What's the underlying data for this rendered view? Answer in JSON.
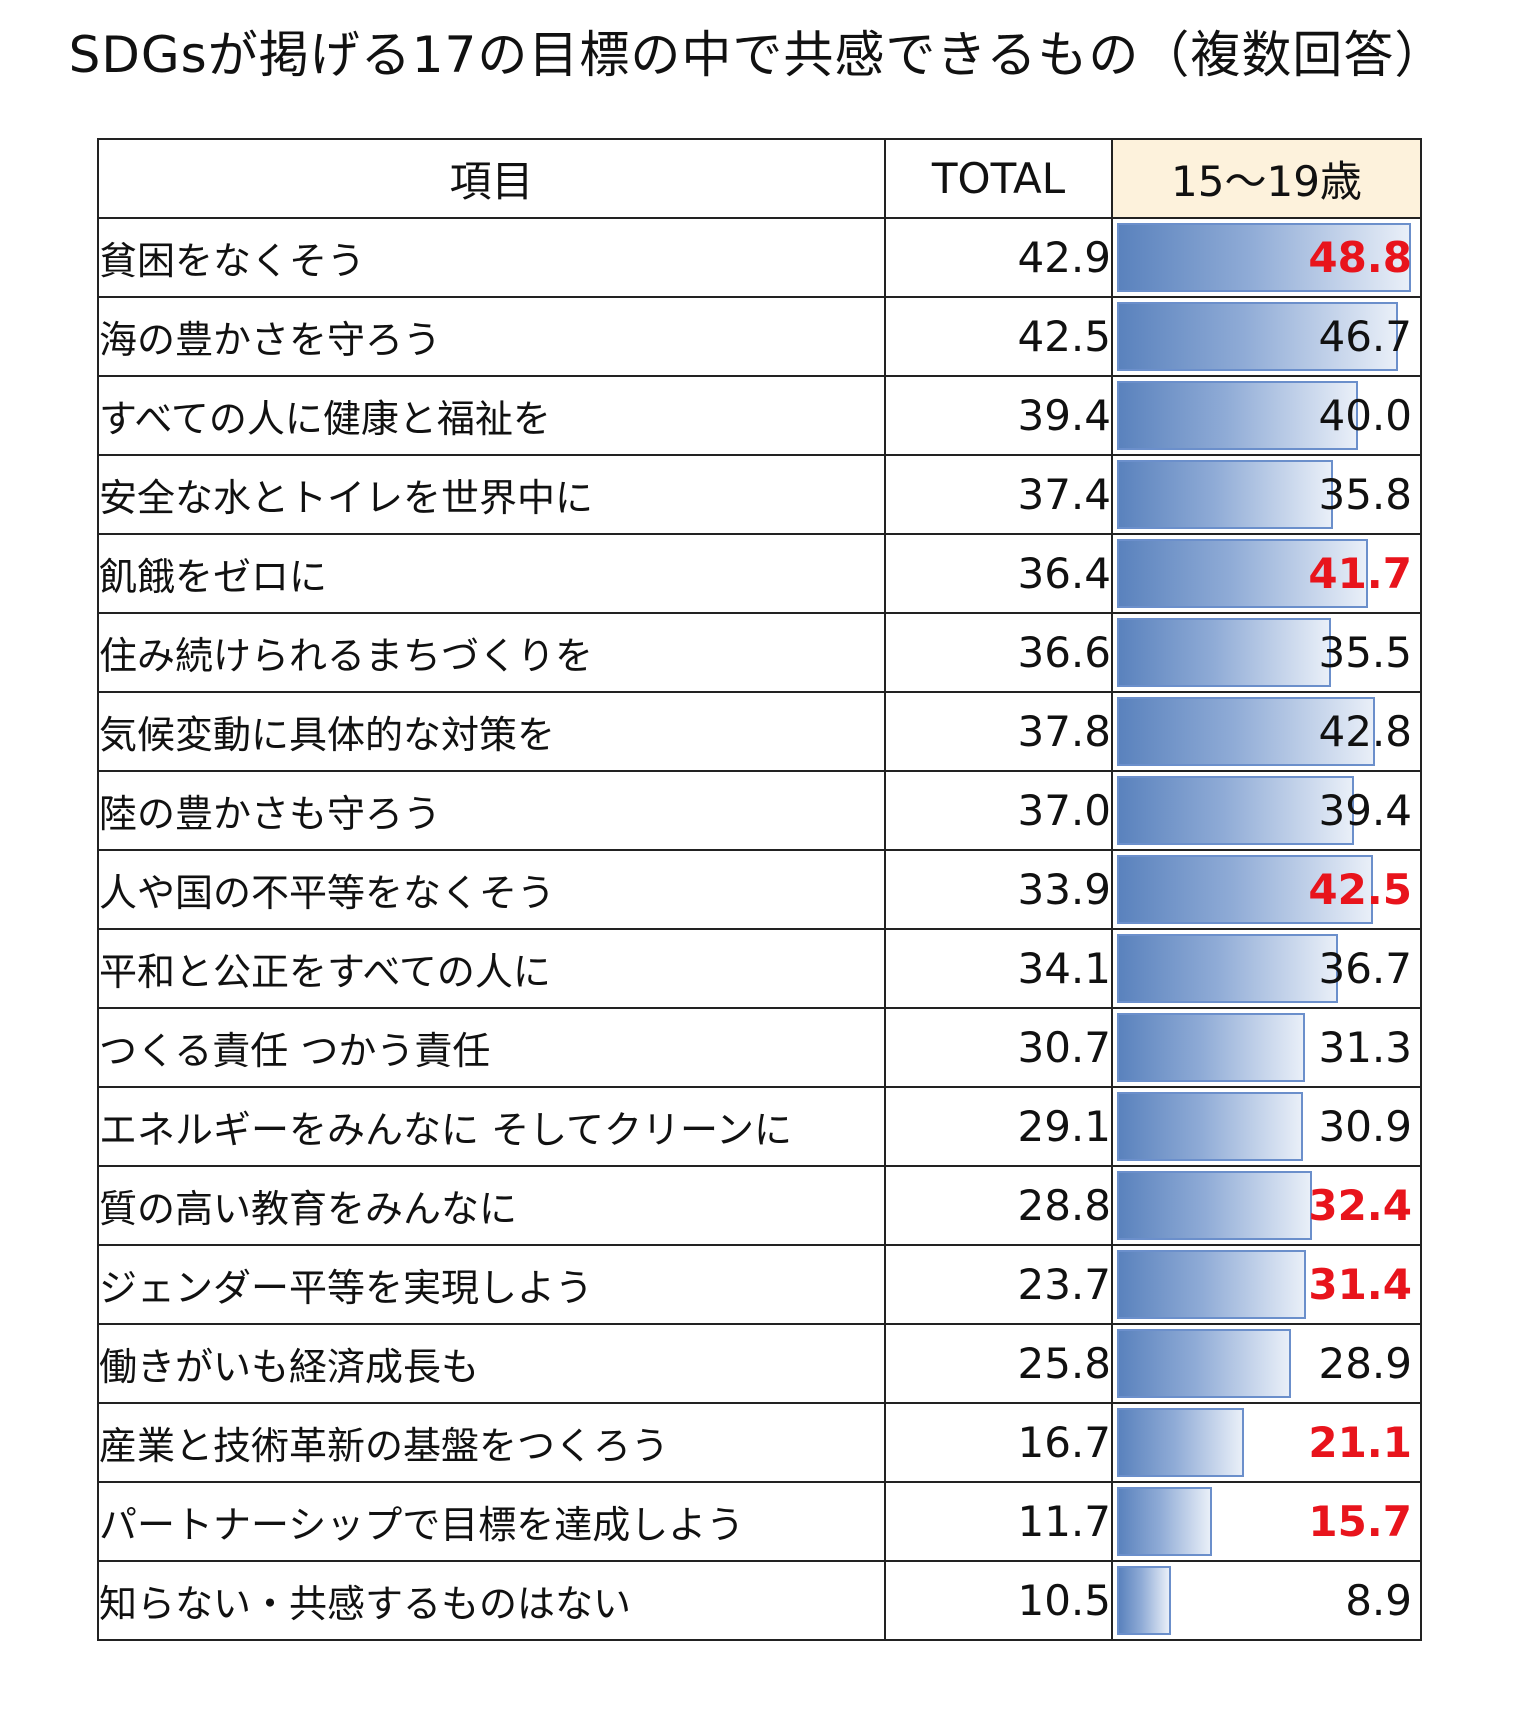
{
  "title": "SDGsが掲げる17の目標の中で共感できるもの（複数回答）",
  "chart_data": {
    "type": "bar",
    "headers": [
      "項目",
      "TOTAL",
      "15～19歳"
    ],
    "highlight_color": "#e8141c",
    "bar_color": "#5a82bd",
    "xlim": [
      0,
      50
    ],
    "rows": [
      {
        "label": "貧困をなくそう",
        "total": "42.9",
        "age": "48.8",
        "value": 48.8,
        "highlight": true
      },
      {
        "label": "海の豊かさを守ろう",
        "total": "42.5",
        "age": "46.7",
        "value": 46.7,
        "highlight": false
      },
      {
        "label": "すべての人に健康と福祉を",
        "total": "39.4",
        "age": "40.0",
        "value": 40.0,
        "highlight": false
      },
      {
        "label": "安全な水とトイレを世界中に",
        "total": "37.4",
        "age": "35.8",
        "value": 35.8,
        "highlight": false
      },
      {
        "label": "飢餓をゼロに",
        "total": "36.4",
        "age": "41.7",
        "value": 41.7,
        "highlight": true
      },
      {
        "label": "住み続けられるまちづくりを",
        "total": "36.6",
        "age": "35.5",
        "value": 35.5,
        "highlight": false
      },
      {
        "label": "気候変動に具体的な対策を",
        "total": "37.8",
        "age": "42.8",
        "value": 42.8,
        "highlight": false
      },
      {
        "label": "陸の豊かさも守ろう",
        "total": "37.0",
        "age": "39.4",
        "value": 39.4,
        "highlight": false
      },
      {
        "label": "人や国の不平等をなくそう",
        "total": "33.9",
        "age": "42.5",
        "value": 42.5,
        "highlight": true
      },
      {
        "label": "平和と公正をすべての人に",
        "total": "34.1",
        "age": "36.7",
        "value": 36.7,
        "highlight": false
      },
      {
        "label": "つくる責任 つかう責任",
        "total": "30.7",
        "age": "31.3",
        "value": 31.3,
        "highlight": false
      },
      {
        "label": "エネルギーをみんなに そしてクリーンに",
        "total": "29.1",
        "age": "30.9",
        "value": 30.9,
        "highlight": false
      },
      {
        "label": "質の高い教育をみんなに",
        "total": "28.8",
        "age": "32.4",
        "value": 32.4,
        "highlight": true
      },
      {
        "label": "ジェンダー平等を実現しよう",
        "total": "23.7",
        "age": "31.4",
        "value": 31.4,
        "highlight": true
      },
      {
        "label": "働きがいも経済成長も",
        "total": "25.8",
        "age": "28.9",
        "value": 28.9,
        "highlight": false
      },
      {
        "label": "産業と技術革新の基盤をつくろう",
        "total": "16.7",
        "age": "21.1",
        "value": 21.1,
        "highlight": true
      },
      {
        "label": "パートナーシップで目標を達成しよう",
        "total": "11.7",
        "age": "15.7",
        "value": 15.7,
        "highlight": true
      },
      {
        "label": "知らない・共感するものはない",
        "total": "10.5",
        "age": "8.9",
        "value": 8.9,
        "highlight": false
      }
    ]
  }
}
